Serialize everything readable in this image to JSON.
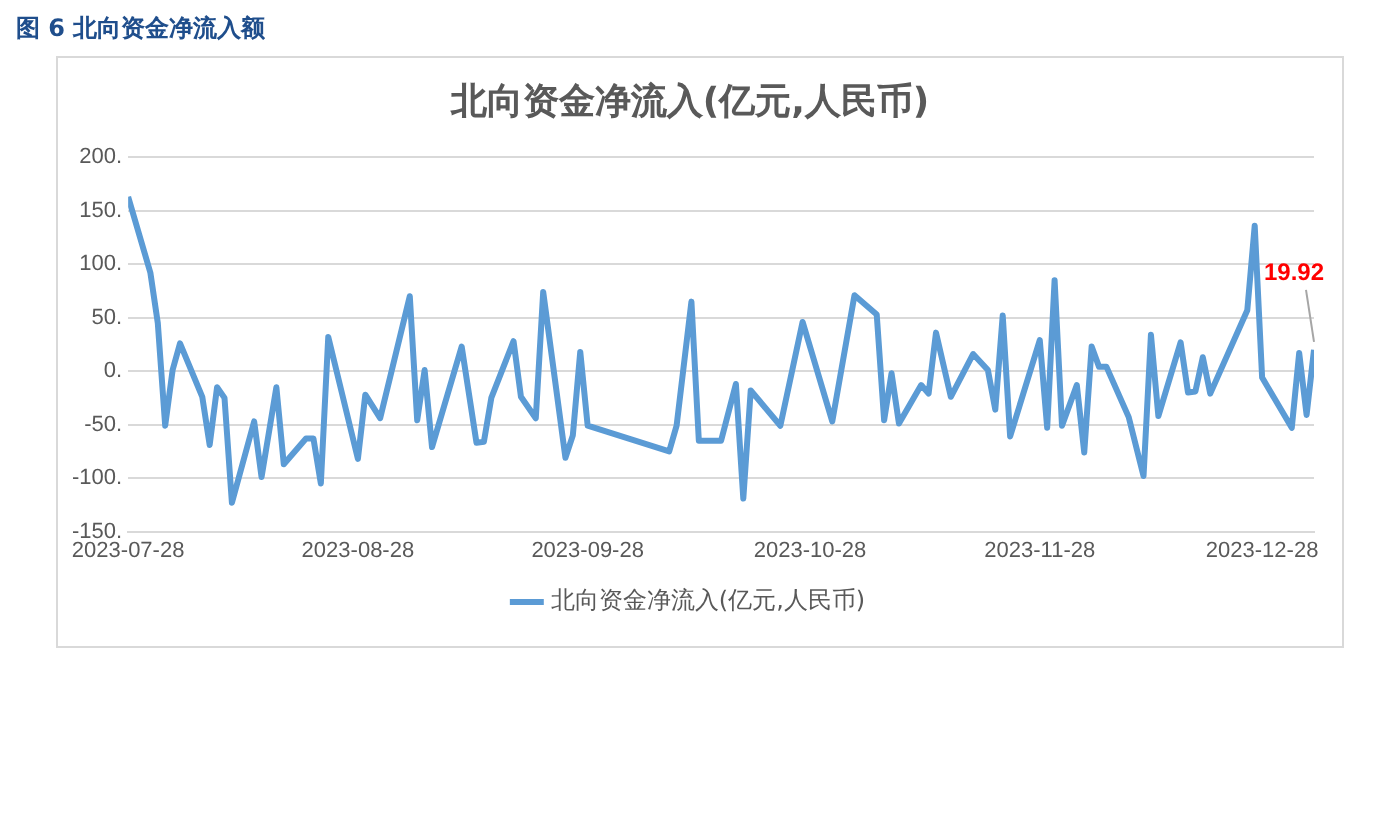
{
  "chart_data": {
    "type": "line",
    "title": "北向资金净流入(亿元,人民币)",
    "annotations": [
      "图 6  北向资金净流入额"
    ],
    "x": [
      "2023-07-28",
      "2023-07-31",
      "2023-08-01",
      "2023-08-02",
      "2023-08-03",
      "2023-08-04",
      "2023-08-07",
      "2023-08-08",
      "2023-08-09",
      "2023-08-10",
      "2023-08-11",
      "2023-08-14",
      "2023-08-15",
      "2023-08-17",
      "2023-08-18",
      "2023-08-21",
      "2023-08-22",
      "2023-08-23",
      "2023-08-24",
      "2023-08-28",
      "2023-08-29",
      "2023-08-31",
      "2023-09-04",
      "2023-09-05",
      "2023-09-06",
      "2023-09-07",
      "2023-09-11",
      "2023-09-13",
      "2023-09-14",
      "2023-09-15",
      "2023-09-18",
      "2023-09-19",
      "2023-09-21",
      "2023-09-22",
      "2023-09-25",
      "2023-09-26",
      "2023-09-27",
      "2023-09-28",
      "2023-10-09",
      "2023-10-10",
      "2023-10-12",
      "2023-10-13",
      "2023-10-16",
      "2023-10-18",
      "2023-10-19",
      "2023-10-20",
      "2023-10-24",
      "2023-10-27",
      "2023-10-31",
      "2023-11-03",
      "2023-11-06",
      "2023-11-07",
      "2023-11-08",
      "2023-11-09",
      "2023-11-12",
      "2023-11-13",
      "2023-11-14",
      "2023-11-16",
      "2023-11-19",
      "2023-11-21",
      "2023-11-22",
      "2023-11-23",
      "2023-11-24",
      "2023-11-28",
      "2023-11-29",
      "2023-11-30",
      "2023-12-01",
      "2023-12-03",
      "2023-12-04",
      "2023-12-05",
      "2023-12-06",
      "2023-12-07",
      "2023-12-10",
      "2023-12-12",
      "2023-12-13",
      "2023-12-14",
      "2023-12-17",
      "2023-12-18",
      "2023-12-19",
      "2023-12-20",
      "2023-12-21",
      "2023-12-26",
      "2023-12-27",
      "2023-12-28",
      "2024-01-01",
      "2024-01-02",
      "2024-01-03",
      "2024-01-04"
    ],
    "series": [
      {
        "name": "北向资金净流入(亿元,人民币)",
        "color": "#5b9bd5",
        "values": [
          163,
          92,
          45,
          -51,
          1,
          26,
          -24,
          -69,
          -15,
          -25,
          -123,
          -47,
          -99,
          -15,
          -87,
          -63,
          -63,
          -105,
          32,
          -82,
          -22,
          -44,
          70,
          -46,
          1,
          -71,
          23,
          -67,
          -66,
          -25,
          28,
          -24,
          -44,
          74,
          -81,
          -60,
          18,
          -51,
          -75,
          -51,
          65,
          -65,
          -65,
          -12,
          -119,
          -18,
          -51,
          46,
          -47,
          71,
          53,
          -46,
          -2,
          -49,
          -13,
          -21,
          36,
          -24,
          16,
          1,
          -36,
          52,
          -61,
          29,
          -53,
          85,
          -51,
          -13,
          -76,
          23,
          4,
          4,
          -43,
          -98,
          34,
          -42,
          27,
          -20,
          -19,
          13,
          -21,
          57,
          136,
          -6,
          -53,
          17,
          -41,
          19.92
        ],
        "value_labels": [
          null,
          null,
          null,
          null,
          null,
          null,
          null,
          null,
          null,
          null,
          null,
          null,
          null,
          null,
          null,
          null,
          null,
          null,
          null,
          null,
          null,
          null,
          null,
          null,
          null,
          null,
          null,
          null,
          null,
          null,
          null,
          null,
          null,
          null,
          null,
          null,
          null,
          null,
          null,
          null,
          null,
          null,
          null,
          null,
          null,
          null,
          null,
          null,
          null,
          null,
          null,
          null,
          null,
          null,
          null,
          null,
          null,
          null,
          null,
          null,
          null,
          null,
          null,
          null,
          null,
          null,
          null,
          null,
          null,
          null,
          null,
          null,
          null,
          null,
          null,
          null,
          null,
          null,
          null,
          null,
          null,
          null,
          null,
          null,
          null,
          null,
          null,
          "19.92"
        ]
      }
    ],
    "xlim": [
      "2023-07-28",
      "2024-01-04"
    ],
    "xticks": [
      "2023-07-28",
      "2023-08-28",
      "2023-09-28",
      "2023-10-28",
      "2023-11-28",
      "2023-12-28"
    ],
    "ylim": [
      -150,
      200
    ],
    "yticks": [
      {
        "value": -150,
        "label": "-150."
      },
      {
        "value": -100,
        "label": "-100."
      },
      {
        "value": -50,
        "label": "-50."
      },
      {
        "value": 0,
        "label": "0."
      },
      {
        "value": 50,
        "label": "50."
      },
      {
        "value": 100,
        "label": "100."
      },
      {
        "value": 150,
        "label": "150."
      },
      {
        "value": 200,
        "label": "200."
      }
    ],
    "grid": "y",
    "legend": "bottom",
    "marker": "none",
    "line_style": "solid"
  }
}
